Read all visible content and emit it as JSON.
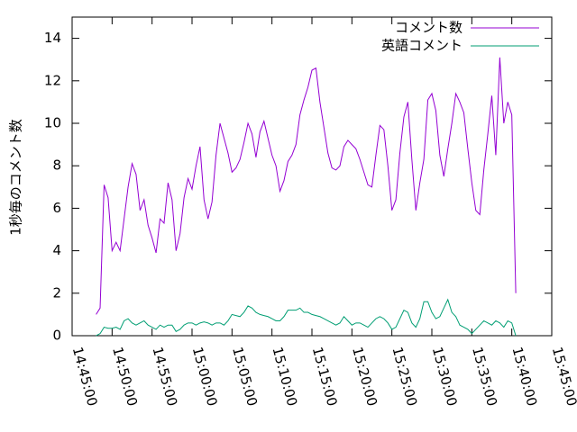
{
  "chart_data": {
    "type": "line",
    "ylabel": "1秒毎のコメント数",
    "x": [
      "14:48:00",
      "14:48:30",
      "14:49:00",
      "14:49:30",
      "14:50:00",
      "14:50:30",
      "14:51:00",
      "14:51:30",
      "14:52:00",
      "14:52:30",
      "14:53:00",
      "14:53:30",
      "14:54:00",
      "14:54:30",
      "14:55:00",
      "14:55:30",
      "14:56:00",
      "14:56:30",
      "14:57:00",
      "14:57:30",
      "14:58:00",
      "14:58:30",
      "14:59:00",
      "14:59:30",
      "15:00:00",
      "15:00:30",
      "15:01:00",
      "15:01:30",
      "15:02:00",
      "15:02:30",
      "15:03:00",
      "15:03:30",
      "15:04:00",
      "15:04:30",
      "15:05:00",
      "15:05:30",
      "15:06:00",
      "15:06:30",
      "15:07:00",
      "15:07:30",
      "15:08:00",
      "15:08:30",
      "15:09:00",
      "15:09:30",
      "15:10:00",
      "15:10:30",
      "15:11:00",
      "15:11:30",
      "15:12:00",
      "15:12:30",
      "15:13:00",
      "15:13:30",
      "15:14:00",
      "15:14:30",
      "15:15:00",
      "15:15:30",
      "15:16:00",
      "15:16:30",
      "15:17:00",
      "15:17:30",
      "15:18:00",
      "15:18:30",
      "15:19:00",
      "15:19:30",
      "15:20:00",
      "15:20:30",
      "15:21:00",
      "15:21:30",
      "15:22:00",
      "15:22:30",
      "15:23:00",
      "15:23:30",
      "15:24:00",
      "15:24:30",
      "15:25:00",
      "15:25:30",
      "15:26:00",
      "15:26:30",
      "15:27:00",
      "15:27:30",
      "15:28:00",
      "15:28:30",
      "15:29:00",
      "15:29:30",
      "15:30:00",
      "15:30:30",
      "15:31:00",
      "15:31:30",
      "15:32:00",
      "15:32:30",
      "15:33:00",
      "15:33:30",
      "15:34:00",
      "15:34:30",
      "15:35:00",
      "15:35:30",
      "15:36:00",
      "15:36:30",
      "15:37:00",
      "15:37:30",
      "15:38:00",
      "15:38:30",
      "15:39:00",
      "15:39:30",
      "15:40:00",
      "15:40:30"
    ],
    "series": [
      {
        "name": "コメント数",
        "color": "#9400d3",
        "values": [
          1.0,
          1.3,
          7.1,
          6.5,
          4.0,
          4.4,
          4.0,
          5.5,
          7.0,
          8.1,
          7.6,
          5.9,
          6.4,
          5.2,
          4.6,
          3.9,
          5.5,
          5.3,
          7.2,
          6.4,
          4.0,
          4.8,
          6.5,
          7.4,
          6.9,
          8.0,
          8.9,
          6.4,
          5.5,
          6.3,
          8.5,
          10.0,
          9.3,
          8.6,
          7.7,
          7.9,
          8.3,
          9.1,
          10.0,
          9.5,
          8.4,
          9.6,
          10.1,
          9.3,
          8.5,
          8.0,
          6.8,
          7.3,
          8.2,
          8.5,
          9.0,
          10.4,
          11.1,
          11.7,
          12.5,
          12.6,
          11.0,
          9.8,
          8.6,
          7.9,
          7.8,
          8.0,
          8.9,
          9.2,
          9.0,
          8.8,
          8.3,
          7.7,
          7.1,
          7.0,
          8.5,
          9.9,
          9.7,
          8.0,
          5.9,
          6.4,
          8.6,
          10.3,
          11.0,
          8.3,
          5.9,
          7.2,
          8.3,
          11.1,
          11.4,
          10.6,
          8.5,
          7.5,
          8.8,
          10.0,
          11.4,
          11.0,
          10.5,
          8.8,
          7.2,
          5.9,
          5.7,
          7.8,
          9.5,
          11.3,
          8.5,
          13.1,
          10.0,
          11.0,
          10.4,
          2.0
        ]
      },
      {
        "name": "英語コメント",
        "color": "#009e73",
        "values": [
          0.0,
          0.1,
          0.4,
          0.35,
          0.35,
          0.4,
          0.3,
          0.7,
          0.8,
          0.6,
          0.5,
          0.6,
          0.7,
          0.5,
          0.4,
          0.3,
          0.5,
          0.4,
          0.5,
          0.5,
          0.2,
          0.3,
          0.5,
          0.6,
          0.6,
          0.5,
          0.6,
          0.65,
          0.6,
          0.5,
          0.6,
          0.6,
          0.5,
          0.7,
          1.0,
          0.95,
          0.9,
          1.1,
          1.4,
          1.3,
          1.1,
          1.0,
          0.95,
          0.9,
          0.8,
          0.7,
          0.7,
          0.9,
          1.2,
          1.2,
          1.2,
          1.3,
          1.1,
          1.1,
          1.0,
          0.95,
          0.9,
          0.8,
          0.7,
          0.6,
          0.5,
          0.6,
          0.9,
          0.7,
          0.5,
          0.6,
          0.6,
          0.5,
          0.4,
          0.6,
          0.8,
          0.9,
          0.8,
          0.6,
          0.3,
          0.4,
          0.8,
          1.2,
          1.1,
          0.6,
          0.4,
          0.8,
          1.6,
          1.6,
          1.1,
          0.8,
          0.9,
          1.3,
          1.7,
          1.1,
          0.9,
          0.5,
          0.4,
          0.3,
          0.1,
          0.3,
          0.5,
          0.7,
          0.6,
          0.5,
          0.7,
          0.6,
          0.4,
          0.7,
          0.6,
          0.0
        ]
      }
    ],
    "xlim": [
      "14:45:00",
      "15:45:00"
    ],
    "xticks": [
      "14:45:00",
      "14:50:00",
      "14:55:00",
      "15:00:00",
      "15:05:00",
      "15:10:00",
      "15:15:00",
      "15:20:00",
      "15:25:00",
      "15:30:00",
      "15:35:00",
      "15:40:00",
      "15:45:00"
    ],
    "ylim": [
      0,
      15
    ],
    "yticks": [
      0,
      2,
      4,
      6,
      8,
      10,
      12,
      14
    ],
    "grid": false,
    "legend": "top-right"
  }
}
